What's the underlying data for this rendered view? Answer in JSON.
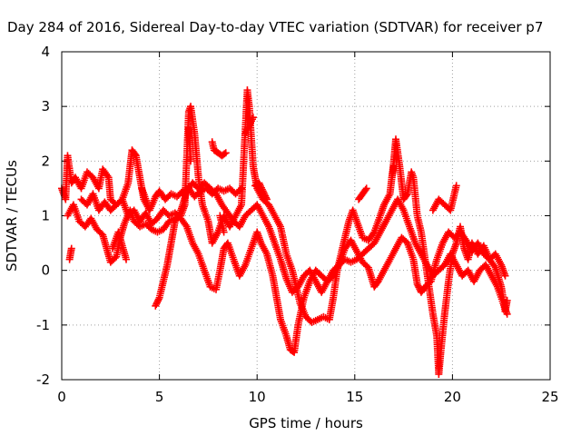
{
  "chart_data": {
    "type": "scatter",
    "title": "Day 284 of 2016, Sidereal Day-to-day VTEC variation (SDTVAR) for receiver p7",
    "xlabel": "GPS time / hours",
    "ylabel": "SDTVAR / TECUs",
    "xlim": [
      0,
      25
    ],
    "ylim": [
      -2,
      4
    ],
    "xticks": [
      0,
      5,
      10,
      15,
      20,
      25
    ],
    "yticks": [
      -2,
      -1,
      0,
      1,
      2,
      3,
      4
    ],
    "grid": true,
    "marker": "+",
    "color": "#ff0000",
    "series": [
      {
        "points": [
          [
            0.0,
            1.5
          ],
          [
            0.2,
            1.3
          ],
          [
            0.3,
            2.1
          ],
          [
            0.5,
            1.6
          ],
          [
            0.7,
            1.7
          ],
          [
            1.0,
            1.5
          ],
          [
            1.3,
            1.8
          ],
          [
            1.6,
            1.7
          ],
          [
            1.9,
            1.5
          ],
          [
            2.1,
            1.85
          ],
          [
            2.4,
            1.7
          ],
          [
            2.5,
            1.3
          ],
          [
            2.8,
            1.2
          ],
          [
            3.1,
            1.3
          ],
          [
            3.4,
            1.6
          ],
          [
            3.6,
            2.2
          ],
          [
            3.8,
            2.1
          ],
          [
            4.0,
            1.7
          ],
          [
            4.2,
            1.3
          ],
          [
            4.5,
            1.1
          ],
          [
            4.8,
            1.35
          ],
          [
            5.0,
            1.45
          ],
          [
            5.3,
            1.3
          ],
          [
            5.6,
            1.4
          ],
          [
            5.9,
            1.35
          ],
          [
            6.2,
            1.45
          ],
          [
            6.5,
            1.5
          ],
          [
            6.8,
            1.35
          ],
          [
            7.1,
            1.45
          ],
          [
            7.4,
            1.5
          ],
          [
            7.7,
            1.4
          ],
          [
            8.0,
            1.5
          ],
          [
            8.3,
            1.45
          ],
          [
            8.6,
            1.5
          ],
          [
            8.9,
            1.4
          ],
          [
            9.2,
            1.5
          ]
        ]
      },
      {
        "points": [
          [
            0.3,
            1.0
          ],
          [
            0.6,
            1.2
          ],
          [
            0.9,
            0.9
          ],
          [
            1.2,
            0.8
          ],
          [
            1.5,
            0.95
          ],
          [
            1.8,
            0.75
          ],
          [
            2.1,
            0.65
          ],
          [
            2.3,
            0.4
          ],
          [
            2.5,
            0.15
          ],
          [
            2.8,
            0.25
          ],
          [
            3.0,
            0.6
          ],
          [
            3.2,
            0.85
          ],
          [
            3.5,
            1.1
          ],
          [
            3.7,
            0.9
          ],
          [
            4.0,
            0.8
          ],
          [
            4.3,
            0.85
          ],
          [
            4.6,
            0.75
          ],
          [
            4.9,
            0.7
          ],
          [
            5.2,
            0.75
          ],
          [
            5.5,
            0.9
          ],
          [
            5.8,
            0.95
          ],
          [
            6.1,
            1.0
          ],
          [
            6.3,
            1.2
          ],
          [
            6.5,
            2.9
          ],
          [
            6.6,
            3.0
          ],
          [
            6.8,
            2.5
          ],
          [
            7.0,
            1.7
          ],
          [
            7.2,
            1.2
          ],
          [
            7.5,
            0.9
          ],
          [
            7.7,
            0.5
          ],
          [
            8.0,
            0.7
          ],
          [
            8.3,
            1.0
          ],
          [
            8.6,
            0.8
          ],
          [
            8.9,
            1.0
          ],
          [
            9.2,
            1.2
          ],
          [
            9.5,
            3.3
          ],
          [
            9.6,
            3.0
          ],
          [
            9.8,
            1.9
          ],
          [
            10.0,
            1.5
          ],
          [
            10.3,
            1.3
          ],
          [
            10.6,
            1.2
          ],
          [
            10.9,
            1.0
          ],
          [
            11.2,
            0.8
          ],
          [
            11.5,
            0.3
          ],
          [
            11.8,
            0.0
          ],
          [
            12.0,
            -0.3
          ],
          [
            12.2,
            -0.6
          ],
          [
            12.5,
            -0.85
          ],
          [
            12.8,
            -0.95
          ],
          [
            13.1,
            -0.9
          ],
          [
            13.4,
            -0.85
          ],
          [
            13.7,
            -0.9
          ],
          [
            13.9,
            -0.5
          ],
          [
            14.1,
            0.0
          ],
          [
            14.3,
            0.3
          ],
          [
            14.5,
            0.6
          ],
          [
            14.7,
            0.9
          ],
          [
            14.9,
            1.1
          ],
          [
            15.1,
            0.9
          ],
          [
            15.4,
            0.6
          ],
          [
            15.7,
            0.55
          ],
          [
            16.0,
            0.7
          ],
          [
            16.3,
            1.0
          ],
          [
            16.5,
            1.2
          ],
          [
            16.8,
            1.4
          ],
          [
            17.0,
            2.0
          ],
          [
            17.1,
            2.4
          ],
          [
            17.3,
            1.9
          ],
          [
            17.5,
            1.3
          ],
          [
            17.7,
            1.4
          ],
          [
            17.9,
            1.8
          ],
          [
            18.0,
            1.7
          ],
          [
            18.2,
            1.0
          ],
          [
            18.4,
            0.7
          ],
          [
            18.6,
            0.2
          ],
          [
            18.8,
            -0.3
          ],
          [
            19.0,
            -0.8
          ],
          [
            19.2,
            -1.2
          ],
          [
            19.3,
            -1.9
          ],
          [
            19.4,
            -1.5
          ],
          [
            19.6,
            -0.8
          ],
          [
            19.8,
            -0.2
          ],
          [
            20.0,
            0.3
          ],
          [
            20.2,
            0.5
          ],
          [
            20.4,
            0.8
          ],
          [
            20.6,
            0.4
          ],
          [
            20.8,
            0.2
          ],
          [
            21.0,
            0.5
          ],
          [
            21.3,
            0.3
          ],
          [
            21.6,
            0.45
          ],
          [
            21.9,
            0.2
          ],
          [
            22.2,
            0.05
          ],
          [
            22.5,
            -0.3
          ],
          [
            22.7,
            -0.75
          ],
          [
            22.8,
            -0.55
          ]
        ]
      },
      {
        "points": [
          [
            1.0,
            1.3
          ],
          [
            1.3,
            1.2
          ],
          [
            1.6,
            1.4
          ],
          [
            1.9,
            1.1
          ],
          [
            2.2,
            1.25
          ],
          [
            2.5,
            1.1
          ],
          [
            2.8,
            1.2
          ],
          [
            3.1,
            1.3
          ],
          [
            3.4,
            1.0
          ],
          [
            3.7,
            1.1
          ],
          [
            4.0,
            0.9
          ],
          [
            4.3,
            1.05
          ],
          [
            4.6,
            0.85
          ],
          [
            4.9,
            0.95
          ],
          [
            5.2,
            1.1
          ],
          [
            5.5,
            1.0
          ],
          [
            5.8,
            1.05
          ],
          [
            6.1,
            0.95
          ],
          [
            6.4,
            0.8
          ],
          [
            6.7,
            0.5
          ],
          [
            7.0,
            0.3
          ],
          [
            7.3,
            0.0
          ],
          [
            7.6,
            -0.3
          ],
          [
            7.9,
            -0.35
          ],
          [
            8.1,
            0.0
          ],
          [
            8.3,
            0.4
          ],
          [
            8.5,
            0.5
          ],
          [
            8.8,
            0.2
          ],
          [
            9.1,
            -0.1
          ],
          [
            9.4,
            0.1
          ],
          [
            9.7,
            0.4
          ],
          [
            10.0,
            0.7
          ],
          [
            10.2,
            0.5
          ],
          [
            10.5,
            0.3
          ],
          [
            10.8,
            -0.1
          ],
          [
            11.0,
            -0.5
          ],
          [
            11.2,
            -0.9
          ],
          [
            11.5,
            -1.2
          ],
          [
            11.7,
            -1.45
          ],
          [
            11.9,
            -1.5
          ],
          [
            12.1,
            -1.0
          ],
          [
            12.4,
            -0.5
          ],
          [
            12.7,
            -0.2
          ],
          [
            13.0,
            0.0
          ],
          [
            13.3,
            -0.1
          ],
          [
            13.6,
            -0.2
          ],
          [
            13.9,
            -0.1
          ],
          [
            14.2,
            0.1
          ],
          [
            14.5,
            0.4
          ],
          [
            14.8,
            0.55
          ],
          [
            15.1,
            0.35
          ],
          [
            15.4,
            0.15
          ],
          [
            15.7,
            0.05
          ],
          [
            16.0,
            -0.3
          ],
          [
            16.2,
            -0.2
          ],
          [
            16.5,
            0.0
          ],
          [
            16.8,
            0.2
          ],
          [
            17.1,
            0.4
          ],
          [
            17.4,
            0.6
          ],
          [
            17.7,
            0.5
          ],
          [
            18.0,
            0.2
          ],
          [
            18.2,
            -0.25
          ],
          [
            18.4,
            -0.4
          ],
          [
            18.6,
            -0.3
          ],
          [
            18.9,
            -0.2
          ],
          [
            19.2,
            0.2
          ],
          [
            19.5,
            0.5
          ],
          [
            19.8,
            0.7
          ],
          [
            20.1,
            0.6
          ],
          [
            20.4,
            0.7
          ],
          [
            20.7,
            0.55
          ],
          [
            21.0,
            0.35
          ],
          [
            21.3,
            0.5
          ],
          [
            21.6,
            0.3
          ],
          [
            21.9,
            0.2
          ],
          [
            22.2,
            0.3
          ],
          [
            22.5,
            0.1
          ],
          [
            22.7,
            -0.1
          ]
        ]
      },
      {
        "points": [
          [
            4.8,
            -0.65
          ],
          [
            5.0,
            -0.5
          ],
          [
            5.2,
            -0.2
          ],
          [
            5.4,
            0.1
          ],
          [
            5.6,
            0.5
          ],
          [
            5.8,
            0.9
          ],
          [
            6.0,
            1.0
          ],
          [
            6.2,
            1.2
          ],
          [
            6.4,
            1.45
          ],
          [
            6.7,
            1.6
          ],
          [
            7.0,
            1.5
          ],
          [
            7.3,
            1.6
          ],
          [
            7.6,
            1.5
          ],
          [
            7.9,
            1.4
          ],
          [
            8.2,
            1.2
          ],
          [
            8.5,
            1.05
          ],
          [
            8.8,
            0.9
          ],
          [
            9.1,
            0.8
          ],
          [
            9.4,
            1.0
          ],
          [
            9.7,
            1.1
          ],
          [
            10.0,
            1.2
          ],
          [
            10.3,
            1.0
          ],
          [
            10.6,
            0.8
          ],
          [
            10.9,
            0.5
          ],
          [
            11.2,
            0.2
          ],
          [
            11.5,
            -0.15
          ],
          [
            11.8,
            -0.4
          ],
          [
            12.1,
            -0.3
          ],
          [
            12.4,
            -0.1
          ],
          [
            12.7,
            0.0
          ],
          [
            13.0,
            -0.2
          ],
          [
            13.3,
            -0.4
          ],
          [
            13.6,
            -0.2
          ],
          [
            13.9,
            0.0
          ],
          [
            14.2,
            0.1
          ],
          [
            14.5,
            0.2
          ],
          [
            14.8,
            0.15
          ],
          [
            15.1,
            0.2
          ],
          [
            15.4,
            0.3
          ],
          [
            15.7,
            0.4
          ],
          [
            16.0,
            0.5
          ],
          [
            16.3,
            0.7
          ],
          [
            16.6,
            0.9
          ],
          [
            16.9,
            1.1
          ],
          [
            17.2,
            1.3
          ],
          [
            17.5,
            1.1
          ],
          [
            17.8,
            0.8
          ],
          [
            18.1,
            0.5
          ],
          [
            18.4,
            0.3
          ],
          [
            18.7,
            0.1
          ],
          [
            19.0,
            -0.1
          ],
          [
            19.3,
            0.0
          ],
          [
            19.6,
            0.1
          ],
          [
            19.9,
            0.3
          ],
          [
            20.2,
            0.1
          ],
          [
            20.5,
            -0.1
          ],
          [
            20.8,
            0.0
          ],
          [
            21.1,
            -0.2
          ],
          [
            21.4,
            0.0
          ],
          [
            21.7,
            0.1
          ],
          [
            22.0,
            -0.1
          ],
          [
            22.3,
            -0.3
          ],
          [
            22.6,
            -0.6
          ],
          [
            22.8,
            -0.8
          ]
        ]
      },
      {
        "points": [
          [
            7.7,
            2.35
          ],
          [
            7.8,
            2.2
          ],
          [
            8.0,
            2.15
          ],
          [
            8.2,
            2.1
          ],
          [
            8.4,
            2.15
          ],
          [
            9.9,
            1.55
          ],
          [
            10.1,
            1.6
          ],
          [
            10.3,
            1.45
          ],
          [
            10.5,
            1.3
          ],
          [
            15.2,
            1.3
          ],
          [
            15.4,
            1.4
          ],
          [
            15.6,
            1.5
          ],
          [
            16.9,
            1.7
          ],
          [
            17.0,
            1.9
          ],
          [
            19.0,
            1.1
          ],
          [
            19.3,
            1.3
          ],
          [
            19.6,
            1.2
          ],
          [
            19.9,
            1.1
          ],
          [
            20.2,
            1.55
          ],
          [
            6.5,
            2.6
          ],
          [
            6.6,
            2.0
          ],
          [
            8.1,
            1.0
          ],
          [
            8.3,
            0.7
          ],
          [
            2.6,
            0.4
          ],
          [
            2.9,
            0.7
          ],
          [
            3.3,
            0.2
          ],
          [
            0.4,
            0.2
          ],
          [
            0.5,
            0.4
          ],
          [
            4.1,
            1.5
          ],
          [
            4.4,
            1.2
          ],
          [
            9.8,
            2.8
          ],
          [
            9.4,
            2.5
          ]
        ]
      }
    ]
  }
}
